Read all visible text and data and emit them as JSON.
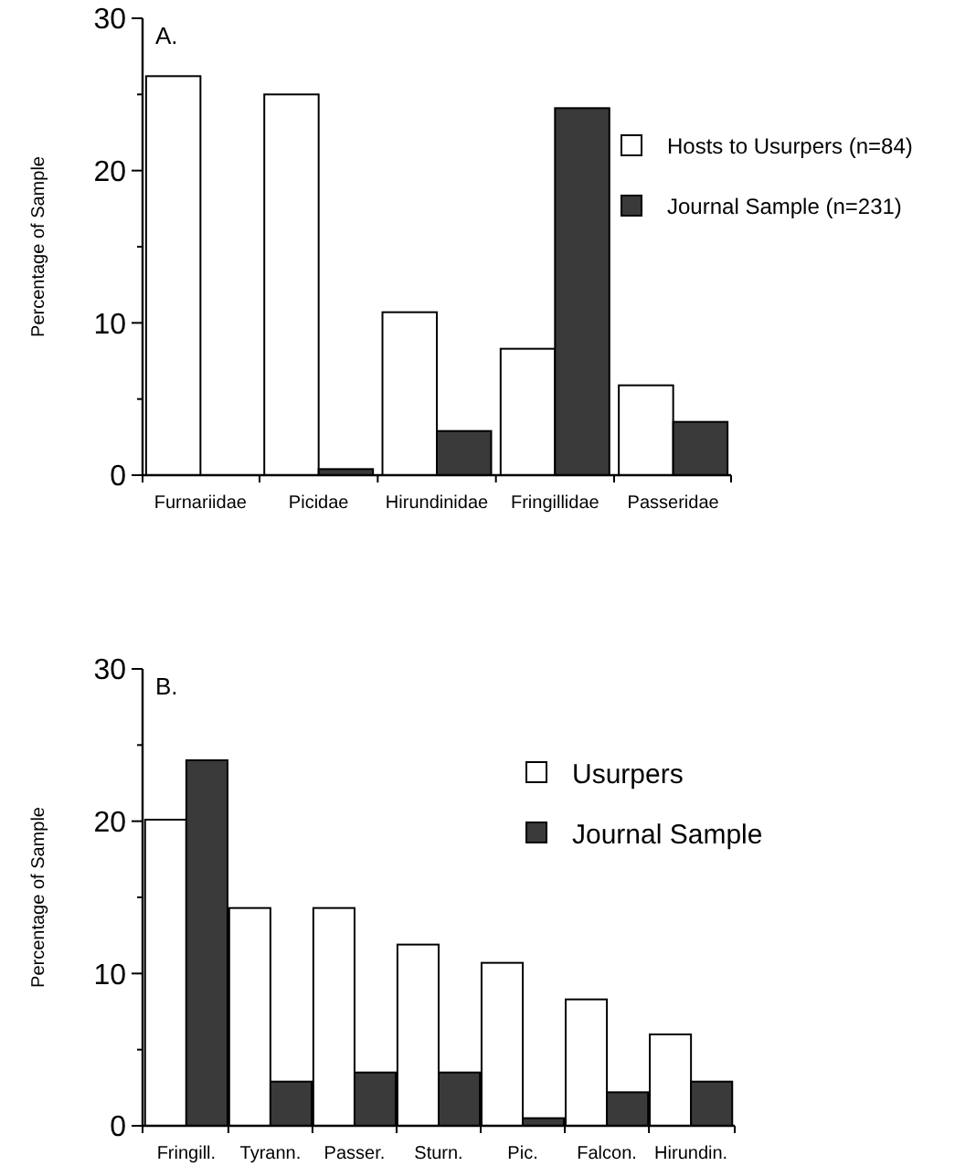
{
  "chart_data": [
    {
      "type": "bar",
      "title": "A.",
      "ylabel": "Percentage of Sample",
      "categories": [
        "Furnariidae",
        "Picidae",
        "Hirundinidae",
        "Fringillidae",
        "Passeridae"
      ],
      "series": [
        {
          "name": "Hosts to Usurpers (n=84)",
          "color": "#ffffff",
          "values": [
            26.2,
            25.0,
            10.7,
            8.3,
            5.9
          ]
        },
        {
          "name": "Journal Sample (n=231)",
          "color": "#3a3a3a",
          "values": [
            0,
            0.4,
            2.9,
            24.1,
            3.5
          ]
        }
      ],
      "ylim": [
        0,
        30
      ],
      "yticks": [
        0,
        {
          "value": 5,
          "label": null
        },
        10,
        {
          "value": 15,
          "label": null
        },
        20,
        {
          "value": 25,
          "label": null
        },
        30
      ],
      "legend": "right",
      "grid": false
    },
    {
      "type": "bar",
      "title": "B.",
      "ylabel": "Percentage of Sample",
      "categories": [
        "Fringill.",
        "Tyrann.",
        "Passer.",
        "Sturn.",
        "Pic.",
        "Falcon.",
        "Hirundin."
      ],
      "series": [
        {
          "name": "Usurpers",
          "color": "#ffffff",
          "values": [
            20.1,
            14.3,
            14.3,
            11.9,
            10.7,
            8.3,
            6.0
          ]
        },
        {
          "name": "Journal Sample",
          "color": "#3a3a3a",
          "values": [
            24.0,
            2.9,
            3.5,
            3.5,
            0.5,
            2.2,
            2.9
          ]
        }
      ],
      "ylim": [
        0,
        30
      ],
      "yticks": [
        0,
        {
          "value": 5,
          "label": null
        },
        10,
        {
          "value": 15,
          "label": null
        },
        20,
        {
          "value": 25,
          "label": null
        },
        30
      ],
      "legend": "top right",
      "grid": false
    }
  ]
}
